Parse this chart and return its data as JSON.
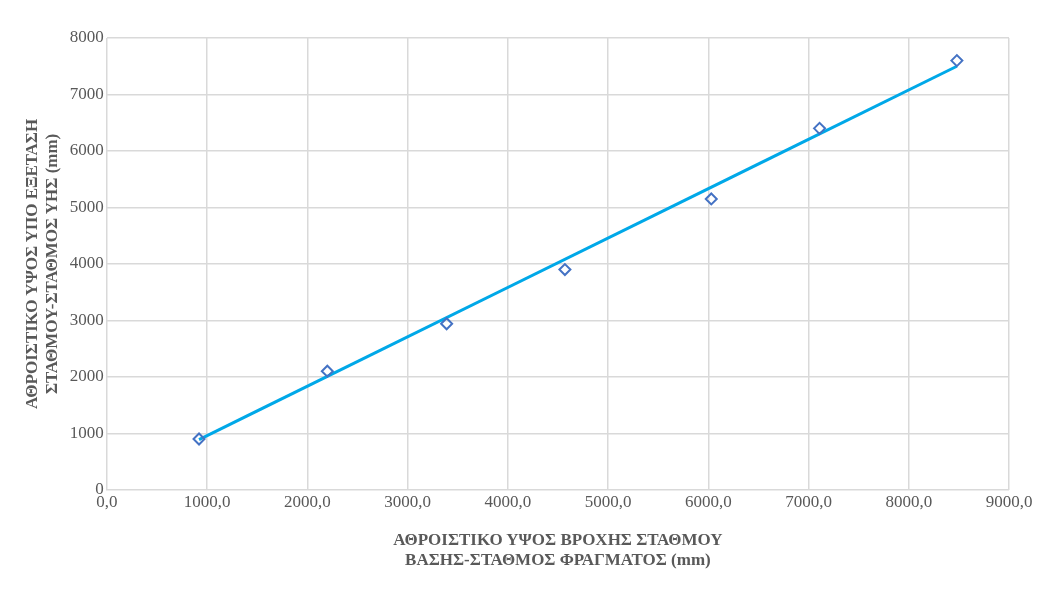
{
  "chart_data": {
    "type": "scatter",
    "xlabel": "ΑΘΡΟΙΣΤΙΚΟ ΥΨΟΣ ΒΡΟΧΗΣ ΣΤΑΘΜΟΥ ΒΑΣΗΣ-ΣΤΑΘΜΟΣ ΦΡΑΓΜΑΤΟΣ (mm)",
    "ylabel": "ΑΘΡΟΙΣΤΙΚΟ ΥΨΟΣ ΥΠΟ ΕΞΕΤΑΣΗ ΣΤΑΘΜΟΥ-ΣΤΑΘΜΟΣ ΥΗΣ (mm)",
    "series": [
      {
        "color": "#4472c4",
        "marker": "diamond",
        "x": [
          920,
          2200,
          3390,
          4570,
          6030,
          7110,
          8480
        ],
        "values": [
          900,
          2100,
          2940,
          3900,
          5150,
          6400,
          7600
        ]
      },
      {
        "type": "line",
        "color": "#00a8e8",
        "marker": "none",
        "line_style": "solid",
        "x": [
          920,
          8480
        ],
        "values": [
          890,
          7500
        ]
      }
    ],
    "xlim": [
      0,
      9000
    ],
    "xticks": [
      {
        "value": 0,
        "label": "0,0"
      },
      {
        "value": 1000,
        "label": "1000,0"
      },
      {
        "value": 2000,
        "label": "2000,0"
      },
      {
        "value": 3000,
        "label": "3000,0"
      },
      {
        "value": 4000,
        "label": "4000,0"
      },
      {
        "value": 5000,
        "label": "5000,0"
      },
      {
        "value": 6000,
        "label": "6000,0"
      },
      {
        "value": 7000,
        "label": "7000,0"
      },
      {
        "value": 8000,
        "label": "8000,0"
      },
      {
        "value": 9000,
        "label": "9000,0"
      }
    ],
    "ylim": [
      0,
      8000
    ],
    "yticks": [
      0,
      1000,
      2000,
      3000,
      4000,
      5000,
      6000,
      7000,
      8000
    ],
    "grid": true,
    "legend": false
  }
}
